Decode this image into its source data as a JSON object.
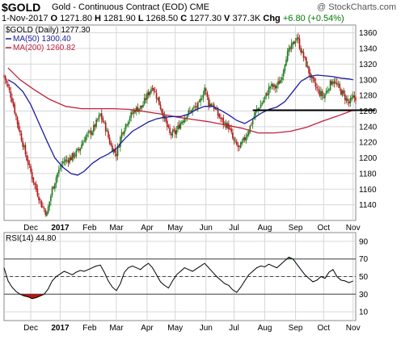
{
  "header": {
    "symbol": "$GOLD",
    "subtitle": "Gold - Continuous Contract (EOD) CME",
    "brand": "@ StockCharts.com",
    "date": "1-Nov-2017",
    "ohlc": [
      {
        "k": "O",
        "v": "1271.80"
      },
      {
        "k": "H",
        "v": "1281.90"
      },
      {
        "k": "L",
        "v": "1268.50"
      },
      {
        "k": "C",
        "v": "1277.30"
      },
      {
        "k": "V",
        "v": "377.3K"
      }
    ],
    "chg_label": "Chg",
    "chg_value": "+6.80 (+0.54%)"
  },
  "colors": {
    "up": "#1a7a1a",
    "down": "#b01818",
    "ma50": "#1c1ca0",
    "ma200": "#c0203a",
    "support": "#000000",
    "rsi_line": "#000000",
    "grid": "#d7d7d7",
    "overbought_fill": "#2e7a2e",
    "oversold_fill": "#b01818"
  },
  "chart_data": [
    {
      "type": "candlestick",
      "legend": [
        {
          "label": "$GOLD (Daily) 1277.30",
          "color": "#000000"
        },
        {
          "label": "MA(50) 1300.40",
          "color": "#1c1ca0"
        },
        {
          "label": "MA(200) 1260.82",
          "color": "#c0203a"
        }
      ],
      "ylim": [
        1120,
        1370
      ],
      "y_ticks": [
        1140,
        1160,
        1180,
        1200,
        1220,
        1240,
        1260,
        1280,
        1300,
        1320,
        1340,
        1360
      ],
      "x_ticks": [
        {
          "label": "Dec",
          "t": 20,
          "bold": false
        },
        {
          "label": "2017",
          "t": 42,
          "bold": true
        },
        {
          "label": "Feb",
          "t": 64,
          "bold": false
        },
        {
          "label": "Mar",
          "t": 84,
          "bold": false
        },
        {
          "label": "Apr",
          "t": 107,
          "bold": false
        },
        {
          "label": "May",
          "t": 128,
          "bold": false
        },
        {
          "label": "Jun",
          "t": 151,
          "bold": false
        },
        {
          "label": "Jul",
          "t": 172,
          "bold": false
        },
        {
          "label": "Aug",
          "t": 195,
          "bold": false
        },
        {
          "label": "Sep",
          "t": 218,
          "bold": false
        },
        {
          "label": "Oct",
          "t": 239,
          "bold": false
        },
        {
          "label": "Nov",
          "t": 261,
          "bold": false
        }
      ],
      "t_range": [
        0,
        263
      ],
      "support_level": 1261,
      "support_from_t": 186,
      "anchors": [
        [
          0,
          1305
        ],
        [
          6,
          1275
        ],
        [
          10,
          1245
        ],
        [
          16,
          1205
        ],
        [
          22,
          1170
        ],
        [
          28,
          1140
        ],
        [
          32,
          1128
        ],
        [
          36,
          1160
        ],
        [
          40,
          1180
        ],
        [
          44,
          1195
        ],
        [
          50,
          1200
        ],
        [
          56,
          1210
        ],
        [
          60,
          1225
        ],
        [
          66,
          1235
        ],
        [
          72,
          1255
        ],
        [
          76,
          1238
        ],
        [
          80,
          1215
        ],
        [
          84,
          1205
        ],
        [
          88,
          1232
        ],
        [
          93,
          1250
        ],
        [
          98,
          1262
        ],
        [
          103,
          1265
        ],
        [
          107,
          1280
        ],
        [
          111,
          1292
        ],
        [
          115,
          1275
        ],
        [
          118,
          1260
        ],
        [
          121,
          1245
        ],
        [
          124,
          1230
        ],
        [
          128,
          1232
        ],
        [
          132,
          1245
        ],
        [
          136,
          1255
        ],
        [
          141,
          1262
        ],
        [
          146,
          1268
        ],
        [
          150,
          1290
        ],
        [
          153,
          1270
        ],
        [
          156,
          1268
        ],
        [
          160,
          1255
        ],
        [
          164,
          1245
        ],
        [
          168,
          1240
        ],
        [
          172,
          1220
        ],
        [
          176,
          1212
        ],
        [
          180,
          1225
        ],
        [
          184,
          1240
        ],
        [
          188,
          1258
        ],
        [
          192,
          1268
        ],
        [
          196,
          1280
        ],
        [
          199,
          1292
        ],
        [
          203,
          1290
        ],
        [
          207,
          1300
        ],
        [
          211,
          1330
        ],
        [
          216,
          1345
        ],
        [
          219,
          1355
        ],
        [
          222,
          1338
        ],
        [
          226,
          1320
        ],
        [
          230,
          1300
        ],
        [
          235,
          1285
        ],
        [
          239,
          1278
        ],
        [
          243,
          1292
        ],
        [
          246,
          1300
        ],
        [
          250,
          1290
        ],
        [
          254,
          1280
        ],
        [
          258,
          1270
        ],
        [
          261,
          1277
        ]
      ],
      "ma50_points": [
        [
          3,
          1300
        ],
        [
          8,
          1295
        ],
        [
          14,
          1285
        ],
        [
          20,
          1268
        ],
        [
          26,
          1245
        ],
        [
          32,
          1222
        ],
        [
          38,
          1200
        ],
        [
          44,
          1188
        ],
        [
          50,
          1180
        ],
        [
          55,
          1178
        ],
        [
          60,
          1183
        ],
        [
          66,
          1193
        ],
        [
          72,
          1200
        ],
        [
          78,
          1205
        ],
        [
          84,
          1212
        ],
        [
          90,
          1224
        ],
        [
          96,
          1234
        ],
        [
          102,
          1240
        ],
        [
          108,
          1246
        ],
        [
          114,
          1250
        ],
        [
          120,
          1252
        ],
        [
          126,
          1253
        ],
        [
          132,
          1253
        ],
        [
          138,
          1256
        ],
        [
          144,
          1262
        ],
        [
          150,
          1266
        ],
        [
          156,
          1266
        ],
        [
          162,
          1261
        ],
        [
          168,
          1255
        ],
        [
          174,
          1248
        ],
        [
          180,
          1244
        ],
        [
          186,
          1250
        ],
        [
          192,
          1257
        ],
        [
          198,
          1262
        ],
        [
          204,
          1265
        ],
        [
          210,
          1272
        ],
        [
          216,
          1285
        ],
        [
          222,
          1298
        ],
        [
          228,
          1304
        ],
        [
          234,
          1306
        ],
        [
          240,
          1305
        ],
        [
          246,
          1304
        ],
        [
          252,
          1302
        ],
        [
          258,
          1301
        ],
        [
          261,
          1300
        ]
      ],
      "ma200_points": [
        [
          3,
          1315
        ],
        [
          12,
          1300
        ],
        [
          22,
          1288
        ],
        [
          34,
          1275
        ],
        [
          46,
          1266
        ],
        [
          58,
          1263
        ],
        [
          70,
          1263
        ],
        [
          82,
          1263
        ],
        [
          94,
          1262
        ],
        [
          106,
          1259
        ],
        [
          118,
          1256
        ],
        [
          130,
          1252
        ],
        [
          142,
          1249
        ],
        [
          154,
          1246
        ],
        [
          166,
          1242
        ],
        [
          178,
          1238
        ],
        [
          190,
          1232
        ],
        [
          202,
          1232
        ],
        [
          214,
          1234
        ],
        [
          226,
          1239
        ],
        [
          238,
          1247
        ],
        [
          250,
          1254
        ],
        [
          261,
          1261
        ]
      ]
    },
    {
      "type": "line",
      "label": "RSI(14) 44.80",
      "ylim": [
        0,
        100
      ],
      "levels": [
        30,
        50,
        70
      ],
      "y_ticks": [
        10,
        30,
        50,
        70,
        90
      ],
      "x_ticks": [
        {
          "label": "Dec",
          "t": 20,
          "bold": false
        },
        {
          "label": "2017",
          "t": 42,
          "bold": true
        },
        {
          "label": "Feb",
          "t": 64,
          "bold": false
        },
        {
          "label": "Mar",
          "t": 84,
          "bold": false
        },
        {
          "label": "Apr",
          "t": 107,
          "bold": false
        },
        {
          "label": "May",
          "t": 128,
          "bold": false
        },
        {
          "label": "Jun",
          "t": 151,
          "bold": false
        },
        {
          "label": "Jul",
          "t": 172,
          "bold": false
        },
        {
          "label": "Aug",
          "t": 195,
          "bold": false
        },
        {
          "label": "Sep",
          "t": 218,
          "bold": false
        },
        {
          "label": "Oct",
          "t": 239,
          "bold": false
        },
        {
          "label": "Nov",
          "t": 261,
          "bold": false
        }
      ],
      "values": [
        [
          0,
          60
        ],
        [
          3,
          45
        ],
        [
          6,
          38
        ],
        [
          9,
          33
        ],
        [
          12,
          30
        ],
        [
          15,
          28
        ],
        [
          18,
          27
        ],
        [
          21,
          25
        ],
        [
          24,
          26
        ],
        [
          27,
          28
        ],
        [
          30,
          30
        ],
        [
          33,
          36
        ],
        [
          36,
          45
        ],
        [
          39,
          50
        ],
        [
          42,
          53
        ],
        [
          45,
          56
        ],
        [
          48,
          54
        ],
        [
          51,
          52
        ],
        [
          54,
          55
        ],
        [
          57,
          57
        ],
        [
          60,
          56
        ],
        [
          63,
          58
        ],
        [
          66,
          60
        ],
        [
          69,
          62
        ],
        [
          72,
          63
        ],
        [
          75,
          55
        ],
        [
          78,
          45
        ],
        [
          81,
          38
        ],
        [
          84,
          34
        ],
        [
          87,
          42
        ],
        [
          90,
          55
        ],
        [
          93,
          60
        ],
        [
          96,
          62
        ],
        [
          99,
          60
        ],
        [
          102,
          58
        ],
        [
          105,
          62
        ],
        [
          108,
          65
        ],
        [
          111,
          60
        ],
        [
          114,
          52
        ],
        [
          117,
          44
        ],
        [
          120,
          40
        ],
        [
          123,
          37
        ],
        [
          126,
          45
        ],
        [
          129,
          52
        ],
        [
          132,
          56
        ],
        [
          135,
          60
        ],
        [
          138,
          58
        ],
        [
          141,
          56
        ],
        [
          144,
          59
        ],
        [
          147,
          62
        ],
        [
          150,
          65
        ],
        [
          153,
          60
        ],
        [
          156,
          55
        ],
        [
          159,
          50
        ],
        [
          162,
          46
        ],
        [
          165,
          42
        ],
        [
          168,
          40
        ],
        [
          171,
          35
        ],
        [
          174,
          32
        ],
        [
          177,
          38
        ],
        [
          180,
          45
        ],
        [
          183,
          52
        ],
        [
          186,
          56
        ],
        [
          189,
          60
        ],
        [
          192,
          62
        ],
        [
          195,
          61
        ],
        [
          198,
          64
        ],
        [
          201,
          62
        ],
        [
          204,
          60
        ],
        [
          207,
          64
        ],
        [
          210,
          68
        ],
        [
          213,
          72
        ],
        [
          216,
          70
        ],
        [
          219,
          64
        ],
        [
          222,
          58
        ],
        [
          225,
          52
        ],
        [
          228,
          48
        ],
        [
          231,
          44
        ],
        [
          234,
          46
        ],
        [
          237,
          50
        ],
        [
          240,
          48
        ],
        [
          243,
          55
        ],
        [
          246,
          58
        ],
        [
          249,
          50
        ],
        [
          252,
          46
        ],
        [
          255,
          45
        ],
        [
          258,
          43
        ],
        [
          261,
          45
        ]
      ]
    }
  ]
}
